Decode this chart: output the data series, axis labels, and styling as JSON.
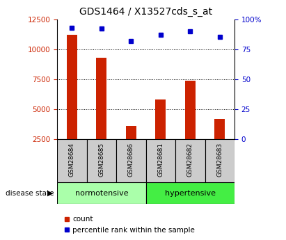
{
  "title": "GDS1464 / X13527cds_s_at",
  "samples": [
    "GSM28684",
    "GSM28685",
    "GSM28686",
    "GSM28681",
    "GSM28682",
    "GSM28683"
  ],
  "count_values": [
    11200,
    9300,
    3600,
    5800,
    7400,
    4200
  ],
  "percentile_values": [
    93,
    92,
    82,
    87,
    90,
    85
  ],
  "groups": [
    {
      "label": "normotensive",
      "indices": [
        0,
        1,
        2
      ],
      "color": "#aaffaa"
    },
    {
      "label": "hypertensive",
      "indices": [
        3,
        4,
        5
      ],
      "color": "#44ee44"
    }
  ],
  "bar_color": "#cc2200",
  "dot_color": "#0000cc",
  "left_ylim": [
    2500,
    12500
  ],
  "left_yticks": [
    2500,
    5000,
    7500,
    10000,
    12500
  ],
  "right_ylim": [
    0,
    100
  ],
  "right_yticks": [
    0,
    25,
    50,
    75,
    100
  ],
  "right_yticklabels": [
    "0",
    "25",
    "50",
    "75",
    "100%"
  ],
  "grid_yticks": [
    5000,
    7500,
    10000
  ],
  "axis_label_color_left": "#cc2200",
  "axis_label_color_right": "#0000cc",
  "legend_count_label": "count",
  "legend_pct_label": "percentile rank within the sample",
  "disease_state_label": "disease state",
  "tick_bg_color": "#cccccc",
  "figure_bg": "#ffffff"
}
